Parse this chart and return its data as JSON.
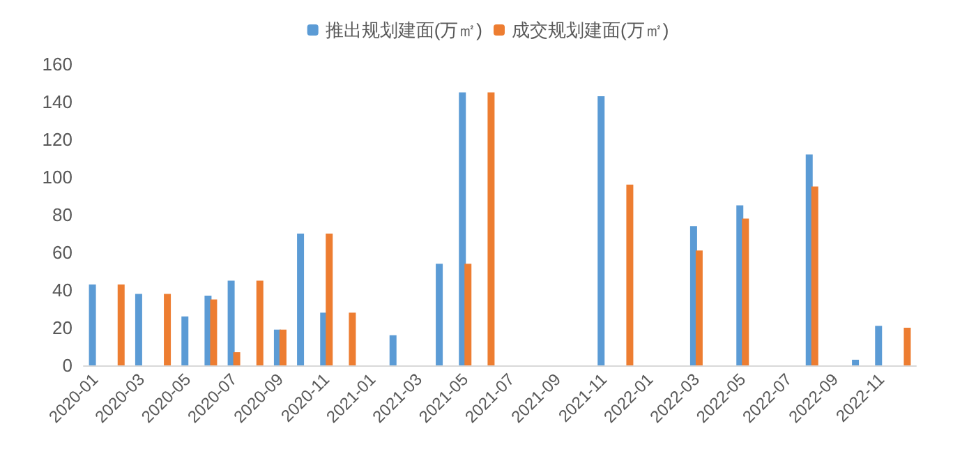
{
  "chart_data": {
    "type": "bar",
    "categories": [
      "2020-01",
      null,
      "2020-03",
      null,
      "2020-05",
      null,
      "2020-07",
      null,
      "2020-09",
      null,
      "2020-11",
      null,
      "2021-01",
      null,
      "2021-03",
      null,
      "2021-05",
      null,
      "2021-07",
      null,
      "2021-09",
      null,
      "2021-11",
      null,
      "2022-01",
      null,
      "2022-03",
      null,
      "2022-05",
      null,
      "2022-07",
      null,
      "2022-09",
      null,
      "2022-11",
      null
    ],
    "series": [
      {
        "name": "推出规划建面(万㎡)",
        "color": "#5b9bd5",
        "values": [
          43,
          null,
          38,
          null,
          26,
          37,
          45,
          null,
          19,
          70,
          28,
          null,
          null,
          16,
          null,
          54,
          145,
          null,
          null,
          null,
          null,
          null,
          143,
          null,
          null,
          null,
          74,
          null,
          85,
          null,
          null,
          112,
          null,
          3,
          21,
          null
        ]
      },
      {
        "name": "成交规划建面(万㎡)",
        "color": "#ed7d31",
        "values": [
          null,
          43,
          null,
          38,
          null,
          35,
          7,
          45,
          19,
          null,
          70,
          28,
          null,
          null,
          null,
          null,
          54,
          145,
          null,
          null,
          null,
          null,
          null,
          96,
          null,
          null,
          61,
          null,
          78,
          null,
          null,
          95,
          null,
          null,
          null,
          20
        ]
      }
    ],
    "ylim": [
      0,
      160
    ],
    "yticks": [
      0,
      20,
      40,
      60,
      80,
      100,
      120,
      140,
      160
    ],
    "grid": false,
    "legend": "top"
  }
}
